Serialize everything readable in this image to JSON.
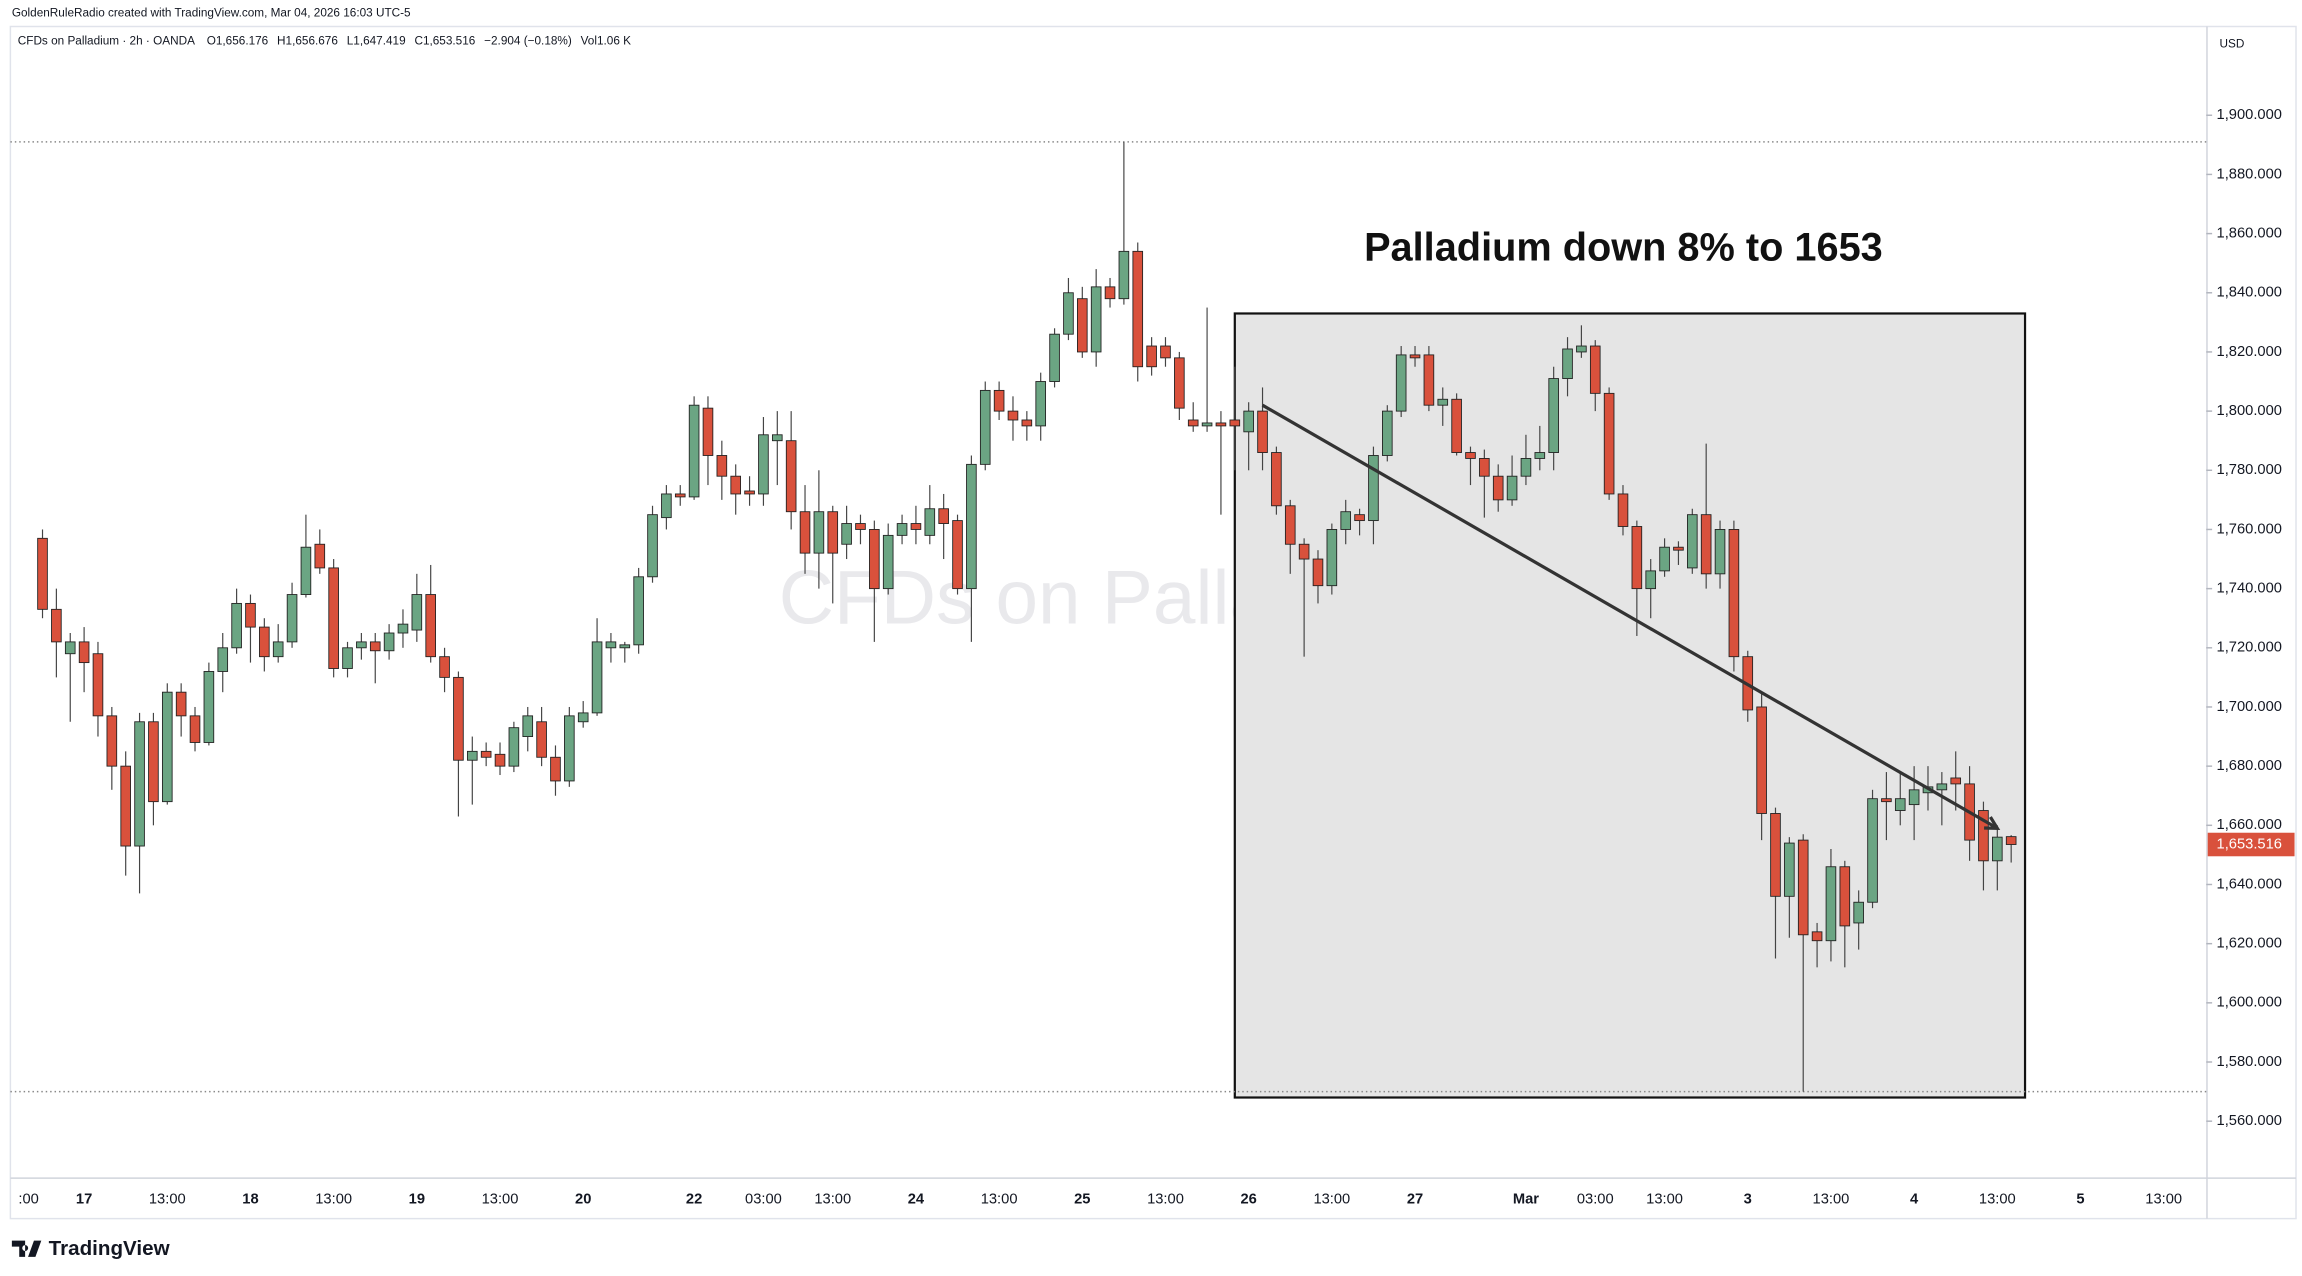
{
  "header": {
    "attribution": "GoldenRuleRadio created with TradingView.com, Mar 04, 2026 16:03 UTC-5",
    "symbol": "CFDs on Palladium · 2h · OANDA",
    "ohlc": [
      "O1,656.176",
      "H1,656.676",
      "L1,647.419",
      "C1,653.516",
      "−2.904 (−0.18%)",
      "Vol1.06 K"
    ]
  },
  "logo": "TradingView",
  "chart_data": {
    "type": "candlestick",
    "currency": "USD",
    "watermark": "CFDs on Palladium",
    "annotation": "Palladium down 8% to 1653",
    "up_color": "#6ba583",
    "down_color": "#d9513c",
    "categories": [
      ":00",
      null,
      null,
      null,
      "17",
      null,
      null,
      null,
      null,
      null,
      "13:00",
      null,
      null,
      null,
      null,
      null,
      "18",
      null,
      null,
      null,
      null,
      null,
      "13:00",
      null,
      null,
      null,
      null,
      null,
      "19",
      null,
      null,
      null,
      null,
      null,
      "13:00",
      null,
      null,
      null,
      null,
      null,
      "20",
      null,
      null,
      null,
      null,
      null,
      null,
      null,
      "22",
      null,
      null,
      null,
      null,
      "03:00",
      null,
      null,
      null,
      null,
      "13:00",
      null,
      null,
      null,
      null,
      null,
      "24",
      null,
      null,
      null,
      null,
      null,
      "13:00",
      null,
      null,
      null,
      null,
      null,
      "25",
      null,
      null,
      null,
      null,
      null,
      "13:00",
      null,
      null,
      null,
      null,
      null,
      "26",
      null,
      null,
      null,
      null,
      null,
      "13:00",
      null,
      null,
      null,
      null,
      null,
      "27",
      null,
      null,
      null,
      null,
      null,
      null,
      null,
      "Mar",
      null,
      null,
      null,
      null,
      "03:00",
      null,
      null,
      null,
      null,
      "13:00",
      null,
      null,
      null,
      null,
      null,
      "3",
      null,
      null,
      null,
      null,
      null,
      "13:00",
      null,
      null,
      null,
      null,
      null,
      "4",
      null,
      null,
      null,
      null,
      null,
      "13:00",
      null,
      null,
      null,
      null,
      null,
      "5",
      null,
      null,
      null,
      null,
      null,
      "13:00",
      null
    ],
    "open": [
      null,
      1757,
      1733,
      1718,
      1722,
      1718,
      1697,
      1680,
      1653,
      1695,
      1668,
      1705,
      1697,
      1688,
      1712,
      1720,
      1735,
      1727,
      1717,
      1722,
      1738,
      1755,
      1747,
      1713,
      1720,
      1722,
      1719,
      1725,
      1726,
      1738,
      1717,
      1710,
      1682,
      1685,
      1684,
      1680,
      1690,
      1695,
      1683,
      1675,
      1695,
      1698,
      1720,
      1720,
      1721,
      1744,
      1764,
      1772,
      1771,
      1801,
      1785,
      1778,
      1773,
      1772,
      1790,
      1790,
      1766,
      1752,
      1766,
      1755,
      1762,
      1760,
      1740,
      1758,
      1762,
      1758,
      1767,
      1763,
      1740,
      1782,
      1807,
      1800,
      1797,
      1795,
      1810,
      1826,
      1838,
      1820,
      1842,
      1838,
      1854,
      1822,
      1822,
      1818,
      1797,
      1795,
      1796,
      1797,
      1793,
      1800,
      1786,
      1768,
      1755,
      1750,
      1741,
      1760,
      1765,
      1763,
      1785,
      1800,
      1819,
      1819,
      1802,
      1804,
      1786,
      1784,
      1778,
      1770,
      1778,
      1784,
      1786,
      1811,
      1820,
      1822,
      1806,
      1772,
      1761,
      1740,
      1746,
      1754,
      1747,
      1765,
      1745,
      1760,
      1717,
      1700,
      1664,
      1636,
      1655,
      1624,
      1621,
      1646,
      1627,
      1634,
      1669,
      1665,
      1667,
      1671,
      1672,
      1676,
      1674,
      1665,
      1648,
      1656.176,
      null,
      null,
      null,
      null,
      null,
      null,
      null,
      null,
      null,
      null,
      null,
      null
    ],
    "high": [
      null,
      1760,
      1740,
      1725,
      1727,
      1722,
      1700,
      1685,
      1698,
      1698,
      1708,
      1708,
      1700,
      1715,
      1725,
      1740,
      1738,
      1730,
      1728,
      1742,
      1765,
      1760,
      1750,
      1722,
      1725,
      1725,
      1728,
      1733,
      1745,
      1748,
      1720,
      1712,
      1690,
      1688,
      1688,
      1695,
      1700,
      1700,
      1687,
      1700,
      1702,
      1730,
      1725,
      1722,
      1747,
      1768,
      1775,
      1775,
      1805,
      1805,
      1790,
      1782,
      1778,
      1798,
      1800,
      1800,
      1775,
      1780,
      1768,
      1768,
      1765,
      1763,
      1762,
      1765,
      1768,
      1775,
      1772,
      1765,
      1785,
      1810,
      1810,
      1805,
      1800,
      1813,
      1828,
      1845,
      1842,
      1848,
      1845,
      1891,
      1857,
      1825,
      1825,
      1820,
      1803,
      1835,
      1800,
      1815,
      1803,
      1808,
      1788,
      1770,
      1757,
      1753,
      1762,
      1770,
      1767,
      1788,
      1802,
      1822,
      1822,
      1822,
      1808,
      1806,
      1788,
      1787,
      1782,
      1785,
      1792,
      1795,
      1815,
      1825,
      1829,
      1824,
      1808,
      1775,
      1763,
      1750,
      1757,
      1756,
      1767,
      1789,
      1763,
      1763,
      1719,
      1705,
      1666,
      1656,
      1657,
      1627,
      1652,
      1648,
      1638,
      1672,
      1678,
      1678,
      1680,
      1680,
      1678,
      1685,
      1680,
      1668,
      1660,
      1656.676,
      null,
      null,
      null,
      null,
      null,
      null,
      null,
      null,
      null,
      null,
      null,
      null
    ],
    "low": [
      null,
      1730,
      1710,
      1695,
      1705,
      1690,
      1672,
      1643,
      1637,
      1660,
      1667,
      1690,
      1685,
      1687,
      1705,
      1718,
      1715,
      1712,
      1715,
      1720,
      1737,
      1745,
      1710,
      1710,
      1716,
      1708,
      1716,
      1720,
      1722,
      1715,
      1705,
      1663,
      1667,
      1680,
      1677,
      1678,
      1685,
      1680,
      1670,
      1673,
      1693,
      1697,
      1715,
      1715,
      1718,
      1742,
      1760,
      1768,
      1770,
      1775,
      1770,
      1765,
      1768,
      1768,
      1775,
      1760,
      1745,
      1740,
      1735,
      1750,
      1755,
      1722,
      1738,
      1755,
      1755,
      1755,
      1750,
      1738,
      1722,
      1780,
      1797,
      1790,
      1790,
      1790,
      1808,
      1824,
      1818,
      1815,
      1835,
      1836,
      1810,
      1812,
      1815,
      1797,
      1793,
      1793,
      1765,
      1780,
      1780,
      1780,
      1765,
      1745,
      1717,
      1735,
      1738,
      1755,
      1758,
      1755,
      1783,
      1798,
      1815,
      1800,
      1795,
      1785,
      1775,
      1764,
      1766,
      1768,
      1775,
      1780,
      1780,
      1805,
      1818,
      1800,
      1770,
      1758,
      1724,
      1730,
      1744,
      1748,
      1745,
      1740,
      1740,
      1712,
      1695,
      1655,
      1615,
      1622,
      1570,
      1612,
      1614,
      1612,
      1618,
      1632,
      1655,
      1660,
      1655,
      1665,
      1660,
      1665,
      1648,
      1638,
      1638,
      1647.419,
      null,
      null,
      null,
      null,
      null,
      null,
      null,
      null,
      null,
      null,
      null,
      null
    ],
    "close": [
      null,
      1733,
      1722,
      1722,
      1715,
      1697,
      1680,
      1653,
      1695,
      1668,
      1705,
      1697,
      1688,
      1712,
      1720,
      1735,
      1727,
      1717,
      1722,
      1738,
      1754,
      1747,
      1713,
      1720,
      1722,
      1719,
      1725,
      1728,
      1738,
      1717,
      1710,
      1682,
      1685,
      1683,
      1680,
      1693,
      1697,
      1683,
      1675,
      1697,
      1698,
      1722,
      1722,
      1721,
      1744,
      1765,
      1772,
      1771,
      1802,
      1785,
      1778,
      1772,
      1772,
      1792,
      1792,
      1766,
      1752,
      1766,
      1752,
      1762,
      1760,
      1740,
      1758,
      1762,
      1760,
      1767,
      1762,
      1740,
      1782,
      1807,
      1800,
      1797,
      1795,
      1810,
      1826,
      1840,
      1820,
      1842,
      1838,
      1854,
      1815,
      1815,
      1818,
      1801,
      1795,
      1796,
      1795,
      1795,
      1800,
      1786,
      1768,
      1755,
      1750,
      1741,
      1760,
      1766,
      1763,
      1785,
      1800,
      1819,
      1818,
      1802,
      1804,
      1786,
      1784,
      1778,
      1770,
      1778,
      1784,
      1786,
      1811,
      1821,
      1822,
      1806,
      1772,
      1761,
      1740,
      1746,
      1754,
      1753,
      1765,
      1745,
      1760,
      1717,
      1699,
      1664,
      1636,
      1654,
      1623,
      1621,
      1646,
      1626,
      1634,
      1669,
      1668,
      1669,
      1672,
      1673,
      1674,
      1674,
      1655,
      1648,
      1656,
      1653.516,
      null,
      null,
      null,
      null,
      null,
      null,
      null,
      null,
      null,
      null,
      null,
      null
    ],
    "last_price": {
      "value": 1653.516,
      "label": "1,653.516"
    },
    "ylim": [
      1541,
      1930
    ],
    "yticks": [
      {
        "value": 1560,
        "label": "1,560.000"
      },
      {
        "value": 1580,
        "label": "1,580.000"
      },
      {
        "value": 1600,
        "label": "1,600.000"
      },
      {
        "value": 1620,
        "label": "1,620.000"
      },
      {
        "value": 1640,
        "label": "1,640.000"
      },
      {
        "value": 1660,
        "label": "1,660.000"
      },
      {
        "value": 1680,
        "label": "1,680.000"
      },
      {
        "value": 1700,
        "label": "1,700.000"
      },
      {
        "value": 1720,
        "label": "1,720.000"
      },
      {
        "value": 1740,
        "label": "1,740.000"
      },
      {
        "value": 1760,
        "label": "1,760.000"
      },
      {
        "value": 1780,
        "label": "1,780.000"
      },
      {
        "value": 1800,
        "label": "1,800.000"
      },
      {
        "value": 1820,
        "label": "1,820.000"
      },
      {
        "value": 1840,
        "label": "1,840.000"
      },
      {
        "value": 1860,
        "label": "1,860.000"
      },
      {
        "value": 1880,
        "label": "1,880.000"
      },
      {
        "value": 1900,
        "label": "1,900.000"
      }
    ],
    "drawings": [
      {
        "type": "rectangle",
        "x": [
          87,
          144
        ],
        "y": [
          1568,
          1833
        ]
      },
      {
        "type": "arrow",
        "x": [
          89,
          142
        ],
        "y": [
          1802,
          1659
        ]
      }
    ]
  }
}
